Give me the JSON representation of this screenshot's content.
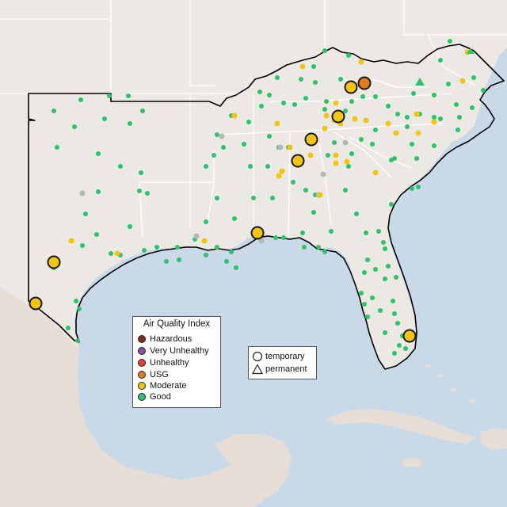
{
  "map": {
    "base_colors": {
      "water": "#c9d9e8",
      "land": "#ece8e3",
      "mexico": "#e6ded6",
      "state_border": "#ffffff",
      "region_outline": "#000000"
    }
  },
  "legend": {
    "title": "Air Quality Index",
    "categories": [
      {
        "label": "Hazardous",
        "color": "#7e2a20"
      },
      {
        "label": "Very Unhealthy",
        "color": "#8c4ab0"
      },
      {
        "label": "Unhealthy",
        "color": "#e0452c"
      },
      {
        "label": "USG",
        "color": "#e07b1e"
      },
      {
        "label": "Moderate",
        "color": "#f2c417"
      },
      {
        "label": "Good",
        "color": "#2fc26c"
      }
    ]
  },
  "monitor_type_legend": {
    "temporary_label": "temporary",
    "permanent_label": "permanent",
    "temporary_icon": "circle-icon",
    "permanent_icon": "triangle-icon"
  }
}
